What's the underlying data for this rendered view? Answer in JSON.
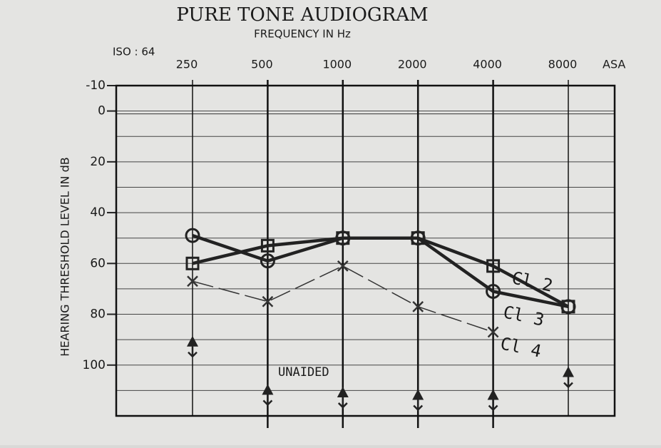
{
  "chart_data": {
    "type": "line",
    "title": "PURE TONE AUDIOGRAM",
    "subtitle": "FREQUENCY IN Hz",
    "standard_left": "ISO : 64",
    "standard_right": "ASA",
    "y_label": "HEARING THRESHOLD LEVEL IN dB",
    "categories": [
      "250",
      "500",
      "1000",
      "2000",
      "4000",
      "8000"
    ],
    "ylim": [
      -10,
      120
    ],
    "y_reversed": true,
    "yticks": [
      -10,
      0,
      20,
      40,
      60,
      80,
      100
    ],
    "minor_grid_step": 10,
    "series": [
      {
        "name": "Cl 2",
        "color": "#222222",
        "marker": "square",
        "line_style": "thick",
        "values": [
          60,
          53,
          50,
          50,
          61,
          77
        ]
      },
      {
        "name": "Cl 3",
        "color": "#222222",
        "marker": "circle",
        "line_style": "thick",
        "values": [
          49,
          59,
          50,
          50,
          71,
          77
        ]
      },
      {
        "name": "Cl 4",
        "color": "#333333",
        "marker": "x",
        "line_style": "thin",
        "values": [
          67,
          75,
          61,
          77,
          87,
          null
        ]
      },
      {
        "name": "UNAIDED",
        "color": "#222222",
        "marker": "triangle",
        "line_style": "none",
        "values": [
          91,
          110,
          111,
          112,
          112,
          103
        ]
      }
    ]
  }
}
